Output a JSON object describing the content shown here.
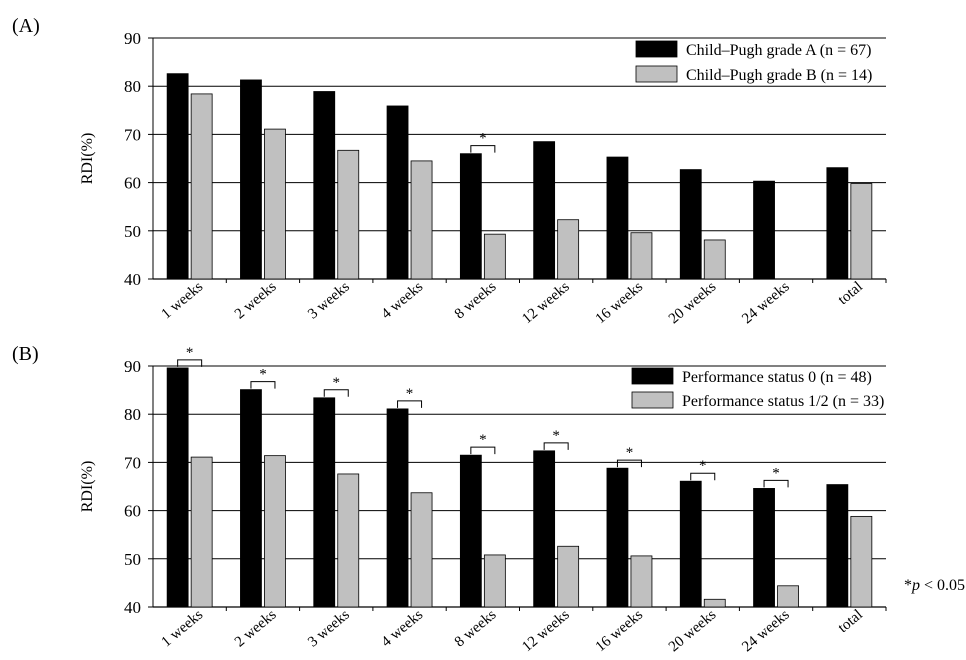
{
  "chart_data": [
    {
      "type": "bar",
      "panel_label": "(A)",
      "ylabel": "RDI(%)",
      "ylim": [
        40,
        90
      ],
      "yticks": [
        "40",
        "50",
        "60",
        "70",
        "80",
        "90"
      ],
      "grid": "horizontal",
      "legend_position": "top-right",
      "categories": [
        "1 weeks",
        "2 weeks",
        "3 weeks",
        "4 weeks",
        "8 weeks",
        "12 weeks",
        "16 weeks",
        "20 weeks",
        "24 weeks",
        "total"
      ],
      "series": [
        {
          "name": "Child–Pugh grade A (n = 67)",
          "color": "#000000",
          "values": [
            82.6,
            81.3,
            78.9,
            75.9,
            66.0,
            68.5,
            65.3,
            62.7,
            60.3,
            63.1
          ]
        },
        {
          "name": "Child–Pugh grade B (n = 14)",
          "color": "#c0c0c0",
          "values": [
            78.4,
            71.1,
            66.7,
            64.5,
            49.3,
            52.3,
            49.6,
            48.1,
            null,
            59.8
          ]
        }
      ],
      "significance": [
        {
          "category_index": 4,
          "label": "*"
        }
      ]
    },
    {
      "type": "bar",
      "panel_label": "(B)",
      "ylabel": "RDI(%)",
      "ylim": [
        40,
        90
      ],
      "yticks": [
        "40",
        "50",
        "60",
        "70",
        "80",
        "90"
      ],
      "grid": "horizontal",
      "legend_position": "top-right",
      "categories": [
        "1 weeks",
        "2 weeks",
        "3 weeks",
        "4 weeks",
        "8 weeks",
        "12 weeks",
        "16 weeks",
        "20 weeks",
        "24 weeks",
        "total"
      ],
      "series": [
        {
          "name": "Performance status 0 (n = 48)",
          "color": "#000000",
          "values": [
            89.6,
            85.1,
            83.4,
            81.1,
            71.5,
            72.4,
            68.8,
            66.1,
            64.6,
            65.4
          ]
        },
        {
          "name": "Performance status 1/2 (n = 33)",
          "color": "#c0c0c0",
          "values": [
            71.1,
            71.4,
            67.6,
            63.7,
            50.8,
            52.6,
            50.6,
            41.6,
            44.4,
            58.8
          ]
        }
      ],
      "significance": [
        {
          "category_index": 0,
          "label": "*"
        },
        {
          "category_index": 1,
          "label": "*"
        },
        {
          "category_index": 2,
          "label": "*"
        },
        {
          "category_index": 3,
          "label": "*"
        },
        {
          "category_index": 4,
          "label": "*"
        },
        {
          "category_index": 5,
          "label": "*"
        },
        {
          "category_index": 6,
          "label": "*"
        },
        {
          "category_index": 7,
          "label": "*"
        },
        {
          "category_index": 8,
          "label": "*"
        }
      ],
      "footnote": {
        "star": "*",
        "italic": "p",
        "rest": " < 0.05"
      }
    }
  ]
}
